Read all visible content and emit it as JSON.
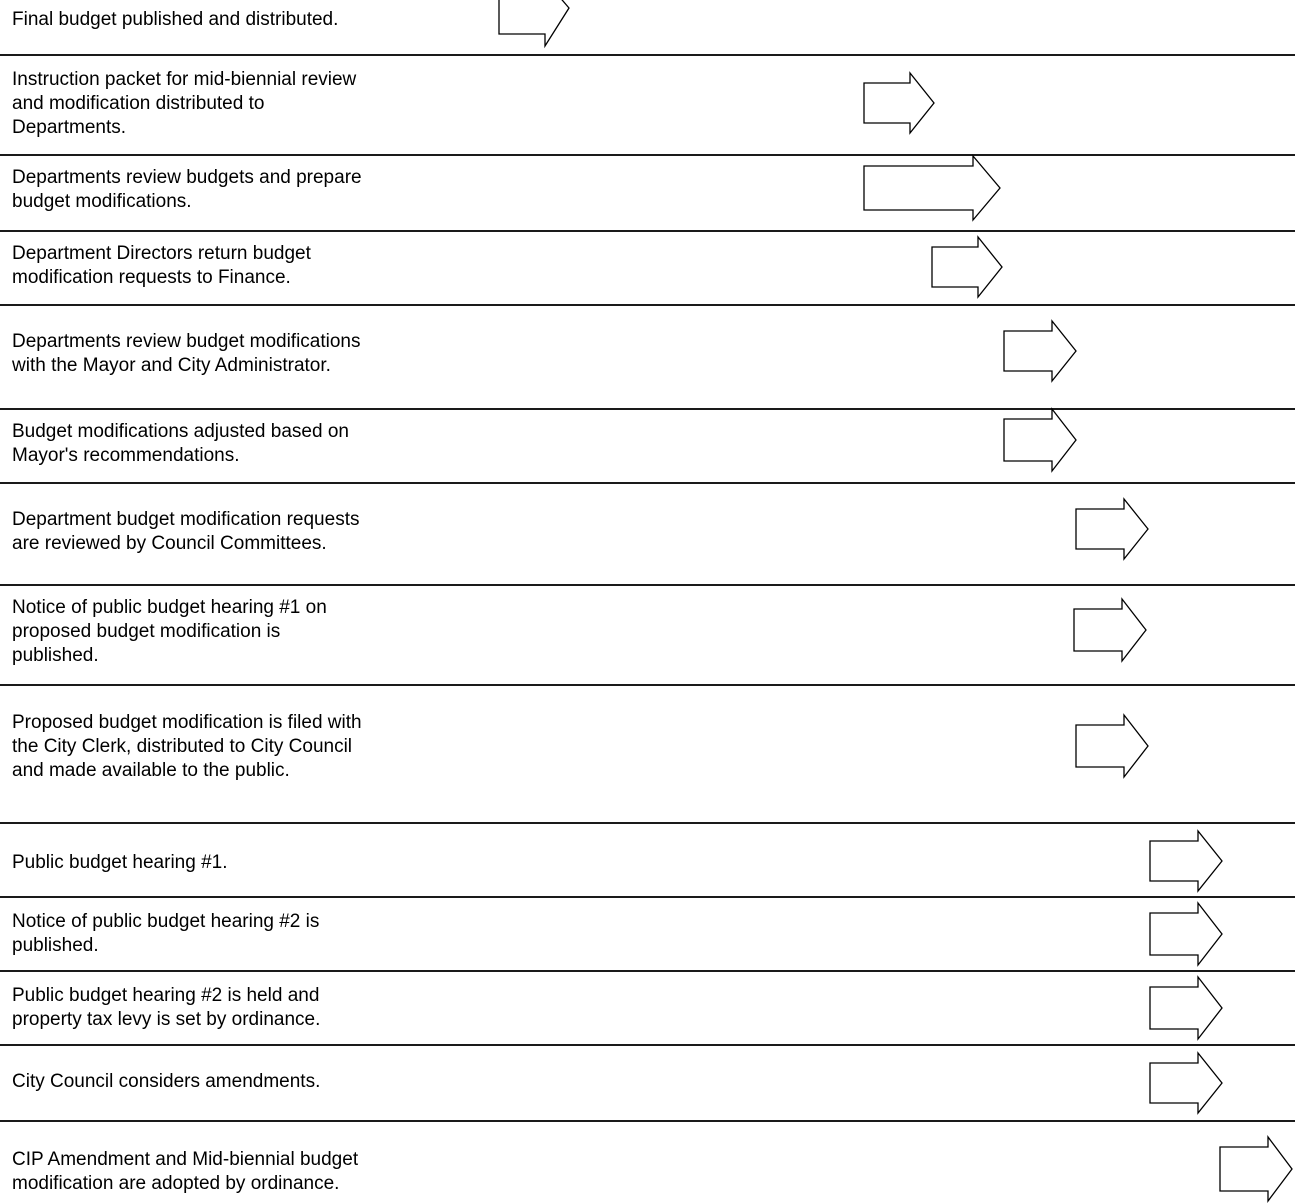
{
  "steps": [
    "Final budget published and distributed.",
    "Instruction packet for mid-biennial review\nand modification distributed to\nDepartments.",
    "Departments review budgets and prepare\nbudget modifications.",
    "Department Directors return budget\nmodification requests to Finance.",
    "Departments review budget modifications\nwith the Mayor and City Administrator.",
    "Budget modifications adjusted based on\nMayor's recommendations.",
    "Department budget modification requests\nare reviewed by Council Committees.",
    "Notice of public budget hearing #1 on\nproposed budget modification is\npublished.",
    "Proposed budget modification is filed with\nthe City Clerk, distributed to City Council\nand made available to the public.",
    "Public budget hearing #1.",
    "Notice of public budget hearing #2 is\npublished.",
    "Public budget hearing #2 is held and\nproperty tax levy is set by ordinance.",
    "City Council considers amendments.",
    "CIP Amendment and Mid-biennial budget\nmodification are adopted by ordinance."
  ]
}
